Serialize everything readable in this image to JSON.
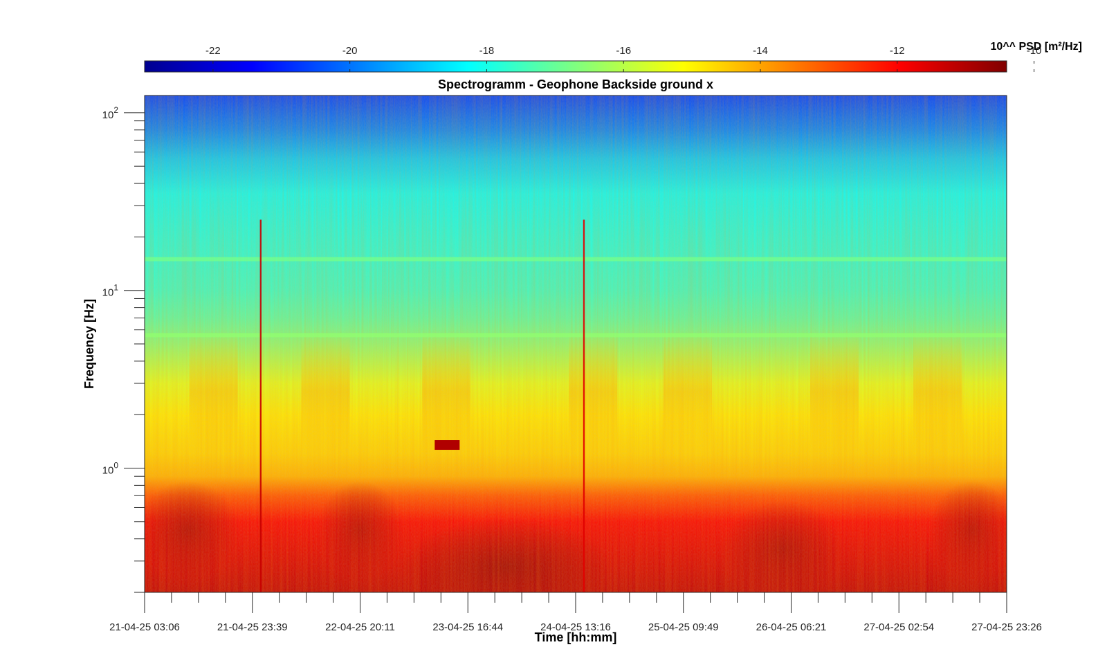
{
  "chart_data": {
    "type": "heatmap",
    "title": "Spectrogramm - Geophone Backside ground x",
    "xlabel": "Time [hh:mm]",
    "ylabel": "Frequency [Hz]",
    "y_scale": "log",
    "x_tick_labels": [
      "21-04-25 03:06",
      "21-04-25 23:39",
      "22-04-25 20:11",
      "23-04-25 16:44",
      "24-04-25 13:16",
      "25-04-25 09:49",
      "26-04-25 06:21",
      "27-04-25 02:54",
      "27-04-25 23:26"
    ],
    "xlim": [
      "21-04-25 03:06",
      "27-04-25 23:26"
    ],
    "y_tick_labels": [
      {
        "base": "10",
        "exp": "0",
        "value": 1
      },
      {
        "base": "10",
        "exp": "1",
        "value": 10
      },
      {
        "base": "10",
        "exp": "2",
        "value": 100
      }
    ],
    "ylim": [
      0.2,
      125
    ],
    "colorbar": {
      "label": "10^^ PSD [m²/Hz]",
      "position": "top",
      "colormap": "jet",
      "clim": [
        -23,
        -10.4
      ],
      "tick_labels": [
        "-22",
        "-20",
        "-18",
        "-16",
        "-14",
        "-12",
        "-10"
      ],
      "ticks": [
        -22,
        -20,
        -18,
        -16,
        -14,
        -12,
        -10
      ]
    },
    "grid": false,
    "annotations": [
      {
        "feature": "horizontal line",
        "frequency_hz": 5.6,
        "log10_psd": -16.5
      },
      {
        "feature": "horizontal line",
        "frequency_hz": 15.0,
        "log10_psd": -16.8
      },
      {
        "feature": "transient",
        "time": "21-04-25 23:39",
        "log10_psd": -11.3
      },
      {
        "feature": "transient",
        "time": "24-04-25 13:16",
        "log10_psd": -11.6
      },
      {
        "feature": "burst",
        "time": "23-04-25 16:44",
        "frequency_hz": 1.35,
        "log10_psd": -11.0
      }
    ]
  }
}
